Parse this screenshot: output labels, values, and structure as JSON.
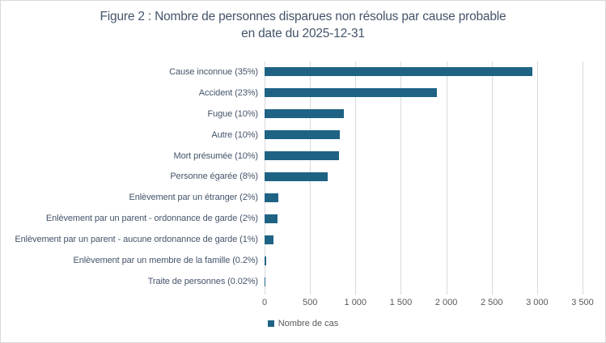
{
  "figure": {
    "title": "Figure 2 : Nombre de personnes disparues non résolus par cause probable en date du 2025-12-31",
    "title_line1": "Figure 2 : Nombre de personnes disparues non résolus par cause probable",
    "title_line2": "en date du 2025-12-31"
  },
  "legend": {
    "label": "Nombre de cas"
  },
  "colors": {
    "bar": "#1F6384",
    "title_text": "#44546A",
    "label_text": "#44546A",
    "tick_text": "#595959",
    "gridline": "#D9D9D9",
    "border": "#D9D9D9",
    "background": "#FFFFFF"
  },
  "chart_data": {
    "type": "bar",
    "orientation": "horizontal",
    "title": "Figure 2 : Nombre de personnes disparues non résolus par cause probable en date du 2025-12-31",
    "categories": [
      "Cause inconnue (35%)",
      "Accident (23%)",
      "Fugue (10%)",
      "Autre (10%)",
      "Mort présumée (10%)",
      "Personne égarée (8%)",
      "Enlèvement par un étranger (2%)",
      "Enlèvement par un parent - ordonnance de garde (2%)",
      "Enlèvement par un parent - aucune ordonannce de garde (1%)",
      "Enlèvement par un membre de la famille (0.2%)",
      "Traite de personnes (0.02%)"
    ],
    "series": [
      {
        "name": "Nombre de cas",
        "values": [
          2950,
          1900,
          875,
          830,
          820,
          695,
          150,
          140,
          95,
          20,
          2
        ]
      }
    ],
    "xlabel": "",
    "ylabel": "",
    "xlim": [
      0,
      3500
    ],
    "x_ticks": [
      0,
      500,
      1000,
      1500,
      2000,
      2500,
      3000,
      3500
    ],
    "x_tick_labels": [
      "0",
      "500",
      "1 000",
      "1 500",
      "2 000",
      "2 500",
      "3 000",
      "3 500"
    ],
    "grid": "vertical",
    "legend_position": "bottom-center"
  }
}
